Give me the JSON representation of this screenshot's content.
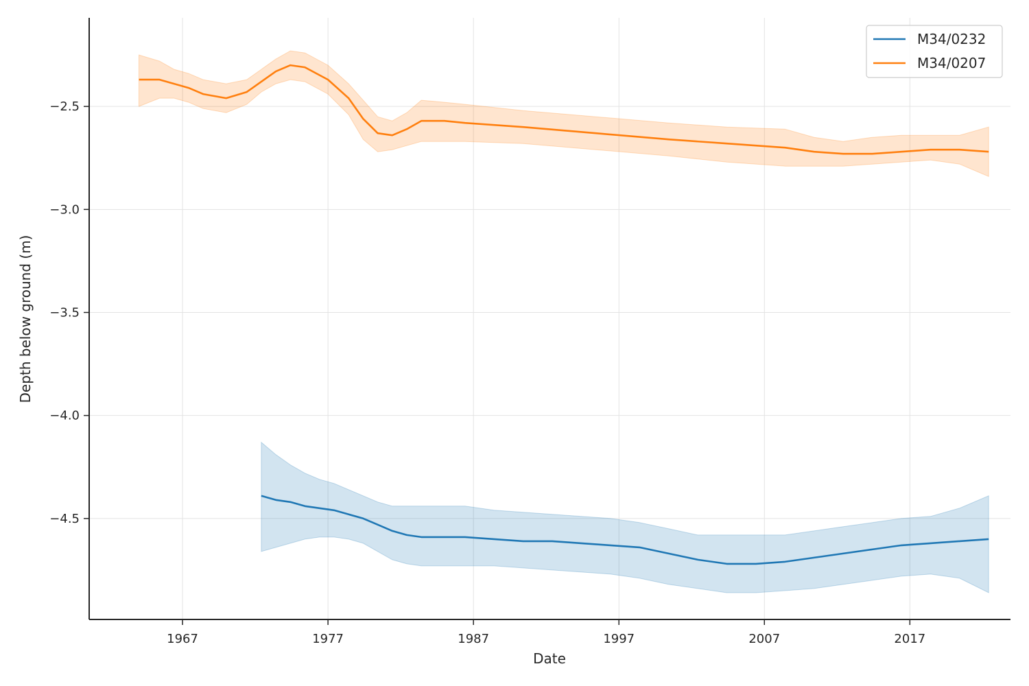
{
  "chart_data": {
    "type": "line",
    "title": "",
    "xlabel": "Date",
    "ylabel": "Depth below ground (m)",
    "x_ticks": [
      "1967",
      "1977",
      "1987",
      "1997",
      "2007",
      "2017"
    ],
    "y_ticks": [
      "−2.5",
      "−3.0",
      "−3.5",
      "−4.0",
      "−4.5"
    ],
    "y_tick_values": [
      -2.5,
      -3.0,
      -3.5,
      -4.0,
      -4.5
    ],
    "xlim": [
      "1960-08-01",
      "2023-12-01"
    ],
    "ylim": [
      -4.99,
      -2.07
    ],
    "grid": true,
    "legend_position": "top-right",
    "series": [
      {
        "name": "M34/0232",
        "color": "#1f77b4",
        "band_color": "#1f77b4",
        "x": [
          "1972-06-01",
          "1973-06-01",
          "1974-06-01",
          "1975-06-01",
          "1976-06-01",
          "1977-06-01",
          "1978-06-01",
          "1979-06-01",
          "1980-06-01",
          "1981-06-01",
          "1982-06-01",
          "1983-06-01",
          "1985-01-01",
          "1986-06-01",
          "1988-06-01",
          "1990-06-01",
          "1992-06-01",
          "1994-06-01",
          "1996-06-01",
          "1998-06-01",
          "2000-06-01",
          "2002-06-01",
          "2004-06-01",
          "2006-06-01",
          "2008-06-01",
          "2010-06-01",
          "2012-06-01",
          "2014-06-01",
          "2016-06-01",
          "2018-06-01",
          "2020-06-01",
          "2022-06-01"
        ],
        "y": [
          -4.39,
          -4.41,
          -4.42,
          -4.44,
          -4.45,
          -4.46,
          -4.48,
          -4.5,
          -4.53,
          -4.56,
          -4.58,
          -4.59,
          -4.59,
          -4.59,
          -4.6,
          -4.61,
          -4.61,
          -4.62,
          -4.63,
          -4.64,
          -4.67,
          -4.7,
          -4.72,
          -4.72,
          -4.71,
          -4.69,
          -4.67,
          -4.65,
          -4.63,
          -4.62,
          -4.61,
          -4.6
        ],
        "lower": [
          -4.66,
          -4.64,
          -4.62,
          -4.6,
          -4.59,
          -4.59,
          -4.6,
          -4.62,
          -4.66,
          -4.7,
          -4.72,
          -4.73,
          -4.73,
          -4.73,
          -4.73,
          -4.74,
          -4.75,
          -4.76,
          -4.77,
          -4.79,
          -4.82,
          -4.84,
          -4.86,
          -4.86,
          -4.85,
          -4.84,
          -4.82,
          -4.8,
          -4.78,
          -4.77,
          -4.79,
          -4.86
        ],
        "upper": [
          -4.13,
          -4.19,
          -4.24,
          -4.28,
          -4.31,
          -4.33,
          -4.36,
          -4.39,
          -4.42,
          -4.44,
          -4.44,
          -4.44,
          -4.44,
          -4.44,
          -4.46,
          -4.47,
          -4.48,
          -4.49,
          -4.5,
          -4.52,
          -4.55,
          -4.58,
          -4.58,
          -4.58,
          -4.58,
          -4.56,
          -4.54,
          -4.52,
          -4.5,
          -4.49,
          -4.45,
          -4.39
        ]
      },
      {
        "name": "M34/0207",
        "color": "#ff7f0e",
        "band_color": "#ff7f0e",
        "x": [
          "1964-01-01",
          "1965-06-01",
          "1966-06-01",
          "1967-06-01",
          "1968-06-01",
          "1970-01-01",
          "1971-06-01",
          "1972-06-01",
          "1973-06-01",
          "1974-06-01",
          "1975-06-01",
          "1977-01-01",
          "1978-06-01",
          "1979-06-01",
          "1980-06-01",
          "1981-06-01",
          "1982-06-01",
          "1983-06-01",
          "1985-01-01",
          "1986-06-01",
          "1990-06-01",
          "1995-06-01",
          "2000-06-01",
          "2004-06-01",
          "2008-06-01",
          "2010-06-01",
          "2012-06-01",
          "2014-06-01",
          "2016-06-01",
          "2018-06-01",
          "2020-06-01",
          "2022-06-01"
        ],
        "y": [
          -2.37,
          -2.37,
          -2.39,
          -2.41,
          -2.44,
          -2.46,
          -2.43,
          -2.38,
          -2.33,
          -2.3,
          -2.31,
          -2.37,
          -2.46,
          -2.56,
          -2.63,
          -2.64,
          -2.61,
          -2.57,
          -2.57,
          -2.58,
          -2.6,
          -2.63,
          -2.66,
          -2.68,
          -2.7,
          -2.72,
          -2.73,
          -2.73,
          -2.72,
          -2.71,
          -2.71,
          -2.72
        ],
        "lower": [
          -2.5,
          -2.46,
          -2.46,
          -2.48,
          -2.51,
          -2.53,
          -2.49,
          -2.43,
          -2.39,
          -2.37,
          -2.38,
          -2.44,
          -2.54,
          -2.66,
          -2.72,
          -2.71,
          -2.69,
          -2.67,
          -2.67,
          -2.67,
          -2.68,
          -2.71,
          -2.74,
          -2.77,
          -2.79,
          -2.79,
          -2.79,
          -2.78,
          -2.77,
          -2.76,
          -2.78,
          -2.84
        ],
        "upper": [
          -2.25,
          -2.28,
          -2.32,
          -2.34,
          -2.37,
          -2.39,
          -2.37,
          -2.32,
          -2.27,
          -2.23,
          -2.24,
          -2.3,
          -2.39,
          -2.47,
          -2.55,
          -2.57,
          -2.53,
          -2.47,
          -2.48,
          -2.49,
          -2.52,
          -2.55,
          -2.58,
          -2.6,
          -2.61,
          -2.65,
          -2.67,
          -2.65,
          -2.64,
          -2.64,
          -2.64,
          -2.6
        ]
      }
    ]
  }
}
